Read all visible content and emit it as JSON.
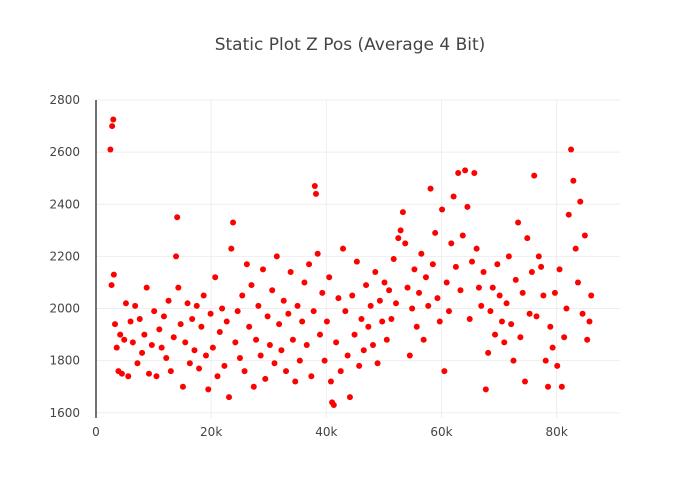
{
  "chart_data": {
    "type": "scatter",
    "title": "Static Plot Z Pos  (Average 4 Bit)",
    "xlabel": "",
    "ylabel": "",
    "xlim": [
      0,
      91000
    ],
    "ylim": [
      1580,
      2800
    ],
    "x_ticks": [
      {
        "value": 0,
        "label": "0"
      },
      {
        "value": 20000,
        "label": "20k"
      },
      {
        "value": 40000,
        "label": "40k"
      },
      {
        "value": 60000,
        "label": "60k"
      },
      {
        "value": 80000,
        "label": "80k"
      }
    ],
    "y_ticks": [
      {
        "value": 1600,
        "label": "1600"
      },
      {
        "value": 1800,
        "label": "1800"
      },
      {
        "value": 2000,
        "label": "2000"
      },
      {
        "value": 2200,
        "label": "2200"
      },
      {
        "value": 2400,
        "label": "2400"
      },
      {
        "value": 2600,
        "label": "2600"
      },
      {
        "value": 2800,
        "label": "2800"
      }
    ],
    "grid": true,
    "legend": "none",
    "marker_color": "#ff0000",
    "series": [
      {
        "x": [
          2500,
          2800,
          3000,
          3100,
          3300,
          2700,
          3600,
          3900,
          4200,
          4500,
          4900,
          5200,
          5600,
          6000,
          6400,
          6800,
          7200,
          7600,
          8000,
          8400,
          8800,
          9200,
          9700,
          10100,
          10500,
          11000,
          11400,
          11800,
          12200,
          12600,
          13000,
          13500,
          13900,
          14100,
          14300,
          14700,
          15100,
          15500,
          15900,
          16300,
          16700,
          17100,
          17500,
          17900,
          18300,
          18700,
          19100,
          19500,
          19900,
          20300,
          20700,
          21100,
          21500,
          21900,
          22300,
          22700,
          23100,
          23500,
          23800,
          24200,
          24600,
          25000,
          25400,
          25800,
          26200,
          26600,
          27000,
          27400,
          27800,
          28200,
          28600,
          29000,
          29400,
          29800,
          30200,
          30600,
          31000,
          31400,
          31800,
          32200,
          32600,
          33000,
          33400,
          33800,
          34200,
          34600,
          35000,
          35400,
          35800,
          36200,
          36600,
          37000,
          37400,
          37800,
          38000,
          38200,
          38500,
          38900,
          39300,
          39700,
          40100,
          40500,
          40800,
          41000,
          41300,
          41700,
          42100,
          42500,
          42900,
          43300,
          43700,
          44100,
          44500,
          44900,
          45300,
          45700,
          46100,
          46500,
          46900,
          47300,
          47700,
          48100,
          48500,
          48900,
          49300,
          49700,
          50100,
          50500,
          50900,
          51300,
          51700,
          52100,
          52500,
          52900,
          53300,
          53700,
          54100,
          54500,
          54900,
          55300,
          55700,
          56100,
          56500,
          56900,
          57300,
          57700,
          58100,
          58500,
          58900,
          59300,
          59700,
          60100,
          60500,
          60900,
          61300,
          61700,
          62100,
          62500,
          62900,
          63300,
          63700,
          64100,
          64500,
          64900,
          65300,
          65700,
          66100,
          66500,
          66900,
          67300,
          67700,
          68100,
          68500,
          68900,
          69300,
          69700,
          70100,
          70500,
          70900,
          71300,
          71700,
          72100,
          72500,
          72900,
          73300,
          73700,
          74100,
          74500,
          74900,
          75300,
          75700,
          76100,
          76500,
          76900,
          77300,
          77700,
          78100,
          78500,
          78900,
          79300,
          79700,
          80100,
          80500,
          80900,
          81300,
          81700,
          82100,
          82500,
          82900,
          83300,
          83700,
          84100,
          84500,
          84900,
          85300,
          85700,
          86000
        ],
        "y": [
          2610,
          2700,
          2725,
          2130,
          1940,
          2090,
          1850,
          1760,
          1900,
          1750,
          1880,
          2020,
          1740,
          1950,
          1870,
          2010,
          1790,
          1960,
          1830,
          1900,
          2080,
          1750,
          1860,
          1990,
          1740,
          1920,
          1850,
          1970,
          1810,
          2030,
          1760,
          1890,
          2200,
          2350,
          2080,
          1940,
          1700,
          1870,
          2020,
          1790,
          1960,
          1840,
          2010,
          1770,
          1930,
          2050,
          1820,
          1690,
          1980,
          1850,
          2120,
          1740,
          1910,
          2000,
          1780,
          1950,
          1660,
          2230,
          2330,
          1870,
          1990,
          1810,
          2050,
          1760,
          2170,
          1930,
          2090,
          1700,
          1880,
          2010,
          1820,
          2150,
          1730,
          1970,
          1860,
          2070,
          1790,
          2200,
          1940,
          1840,
          2030,
          1760,
          1980,
          2140,
          1880,
          1720,
          2010,
          1800,
          1950,
          2100,
          1860,
          2170,
          1740,
          1990,
          2470,
          2440,
          2210,
          1900,
          2060,
          1800,
          1950,
          2120,
          1720,
          1640,
          1630,
          1870,
          2040,
          1760,
          2230,
          1990,
          1820,
          1660,
          2050,
          1900,
          2180,
          1780,
          1960,
          1840,
          2090,
          1930,
          2010,
          1860,
          2140,
          1790,
          2030,
          1950,
          2100,
          1880,
          2070,
          1960,
          2190,
          2020,
          2270,
          2300,
          2370,
          2250,
          2080,
          1820,
          2000,
          2150,
          1930,
          2060,
          2210,
          1880,
          2120,
          2010,
          2460,
          2170,
          2290,
          2040,
          1950,
          2380,
          1760,
          2100,
          1990,
          2250,
          2430,
          2160,
          2520,
          2070,
          2280,
          2530,
          2390,
          1960,
          2180,
          2520,
          2230,
          2080,
          2010,
          2140,
          1690,
          1830,
          1990,
          2080,
          1900,
          2170,
          2050,
          1950,
          1870,
          2020,
          2200,
          1940,
          1800,
          2110,
          2330,
          1890,
          2060,
          1720,
          2270,
          1980,
          2140,
          2510,
          1970,
          2200,
          2160,
          2050,
          1800,
          1700,
          1930,
          1850,
          2060,
          1780,
          2150,
          1700,
          1890,
          2000,
          2360,
          2610,
          2490,
          2230,
          2100,
          2410,
          1980,
          2280,
          1880,
          1950,
          2050
        ]
      }
    ]
  }
}
